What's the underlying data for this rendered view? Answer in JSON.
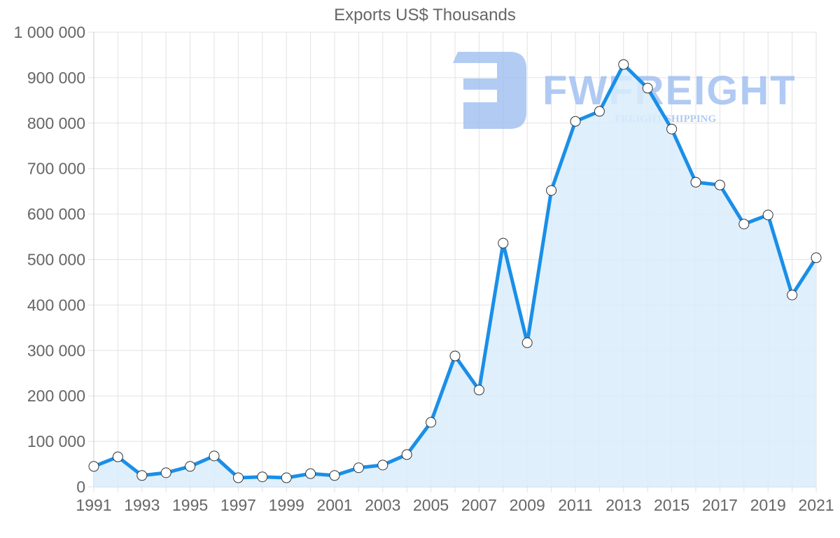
{
  "chart_data": {
    "type": "area",
    "title": "Exports US$ Thousands",
    "xlabel": "",
    "ylabel": "",
    "x": [
      1991,
      1992,
      1993,
      1994,
      1995,
      1996,
      1997,
      1998,
      1999,
      2000,
      2001,
      2002,
      2003,
      2004,
      2005,
      2006,
      2007,
      2008,
      2009,
      2010,
      2011,
      2012,
      2013,
      2014,
      2015,
      2016,
      2017,
      2018,
      2019,
      2020,
      2021
    ],
    "series": [
      {
        "name": "Exports US$ Thousands",
        "values": [
          45000,
          66000,
          25000,
          31000,
          45000,
          68000,
          20000,
          22000,
          20000,
          29000,
          25000,
          42000,
          48000,
          71000,
          142000,
          288000,
          213000,
          536000,
          317000,
          652000,
          804000,
          826000,
          929000,
          877000,
          787000,
          670000,
          664000,
          578000,
          598000,
          422000,
          504000
        ]
      }
    ],
    "ylim": [
      0,
      1000000
    ],
    "yticks": [
      0,
      100000,
      200000,
      300000,
      400000,
      500000,
      600000,
      700000,
      800000,
      900000,
      1000000
    ],
    "ytick_labels": [
      "0",
      "100 000",
      "200 000",
      "300 000",
      "400 000",
      "500 000",
      "600 000",
      "700 000",
      "800 000",
      "900 000",
      "1 000 000"
    ],
    "xtick_labels": [
      "1991",
      "1993",
      "1995",
      "1997",
      "1999",
      "2001",
      "2003",
      "2005",
      "2007",
      "2009",
      "2011",
      "2013",
      "2015",
      "2017",
      "2019",
      "2021"
    ],
    "grid": true,
    "legend": "none",
    "colors": {
      "line": "#1a8fe8",
      "fill": "#d9ecfc",
      "marker_fill": "#ffffff",
      "marker_stroke": "#333333",
      "grid": "#e2e2e2",
      "text": "#666666"
    }
  },
  "watermark": {
    "brand": "FWFREIGHT",
    "tagline": "FREIGHT SHIPPING",
    "color": "#9bbcf0"
  }
}
